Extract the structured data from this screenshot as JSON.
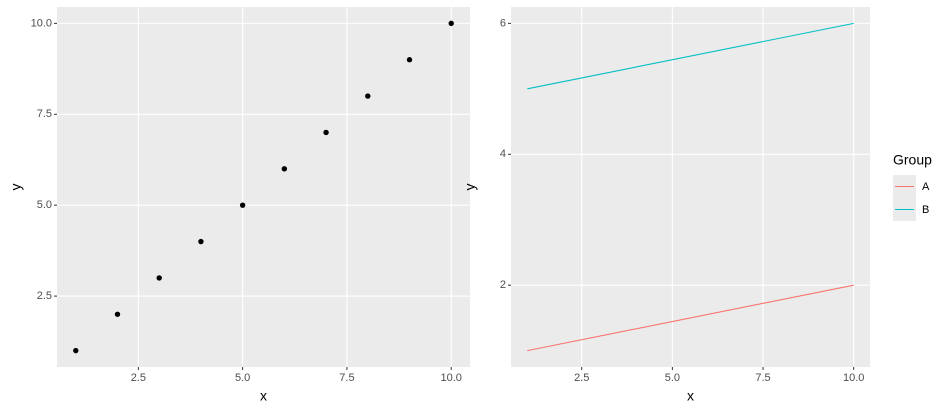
{
  "chart_data": [
    {
      "type": "scatter",
      "x_label": "x",
      "y_label": "y",
      "x": [
        1,
        2,
        3,
        4,
        5,
        6,
        7,
        8,
        9,
        10
      ],
      "values": [
        1,
        2,
        3,
        4,
        5,
        6,
        7,
        8,
        9,
        10
      ],
      "color": "#000000",
      "xlim": [
        0.55,
        10.45
      ],
      "ylim": [
        0.55,
        10.45
      ],
      "xticks": [
        2.5,
        {
          "value": 5,
          "label": "5.0"
        },
        7.5,
        {
          "value": 10,
          "label": "10.0"
        }
      ],
      "yticks": [
        2.5,
        {
          "value": 5,
          "label": "5.0"
        },
        7.5,
        {
          "value": 10,
          "label": "10.0"
        }
      ],
      "grid": true
    },
    {
      "type": "line",
      "x_label": "x",
      "y_label": "y",
      "legend_title": "Group",
      "x": [
        1,
        10
      ],
      "series": [
        {
          "name": "A",
          "color": "#F8766D",
          "values": [
            1,
            2
          ]
        },
        {
          "name": "B",
          "color": "#00BFC4",
          "values": [
            5,
            6
          ]
        }
      ],
      "xlim": [
        0.55,
        10.45
      ],
      "ylim": [
        0.75,
        6.25
      ],
      "xticks": [
        2.5,
        {
          "value": 5,
          "label": "5.0"
        },
        7.5,
        {
          "value": 10,
          "label": "10.0"
        }
      ],
      "yticks": [
        2,
        4,
        6
      ],
      "grid": true,
      "legend": "right"
    }
  ]
}
